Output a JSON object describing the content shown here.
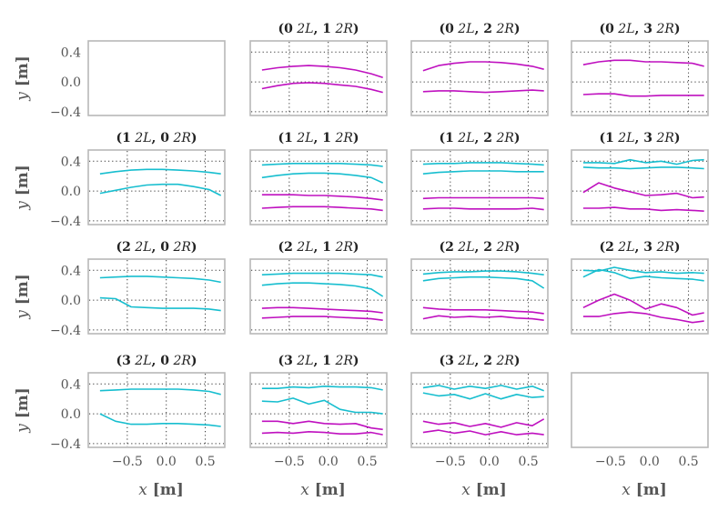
{
  "chart_data": {
    "type": "line",
    "rows": 4,
    "cols": 4,
    "xlim": [
      -1.0,
      0.75
    ],
    "ylim": [
      -0.45,
      0.55
    ],
    "x_ticks": [
      -0.5,
      0.0,
      0.5
    ],
    "x_tick_labels": [
      "−0.5",
      "0.0",
      "0.5"
    ],
    "y_ticks": [
      0.4,
      0.0,
      -0.4
    ],
    "y_tick_labels": [
      "0.4",
      "0.0",
      "−0.4"
    ],
    "ylabel_text": "y",
    "ylabel_unit": "[m]",
    "xlabel_text": "x",
    "xlabel_unit": "[m]",
    "colors": {
      "left": "#17becf",
      "right": "#bf10bf",
      "frame": "#b8b8b8",
      "tick": "#555555"
    },
    "x": [
      -0.85,
      -0.65,
      -0.45,
      -0.25,
      -0.05,
      0.15,
      0.35,
      0.55,
      0.7
    ],
    "panels": [
      {
        "row": 0,
        "col": 0,
        "title": null,
        "series": []
      },
      {
        "row": 0,
        "col": 1,
        "title": {
          "a": "0",
          "b": "1"
        },
        "series": [
          {
            "group": "right",
            "values": [
              0.16,
              0.19,
              0.21,
              0.22,
              0.21,
              0.19,
              0.16,
              0.11,
              0.06
            ]
          },
          {
            "group": "right",
            "values": [
              -0.09,
              -0.05,
              -0.02,
              -0.01,
              -0.02,
              -0.04,
              -0.06,
              -0.1,
              -0.14
            ]
          }
        ]
      },
      {
        "row": 0,
        "col": 2,
        "title": {
          "a": "0",
          "b": "2"
        },
        "series": [
          {
            "group": "right",
            "values": [
              0.15,
              0.22,
              0.25,
              0.27,
              0.27,
              0.26,
              0.24,
              0.21,
              0.17
            ]
          },
          {
            "group": "right",
            "values": [
              -0.13,
              -0.12,
              -0.12,
              -0.13,
              -0.14,
              -0.13,
              -0.12,
              -0.11,
              -0.12
            ]
          }
        ]
      },
      {
        "row": 0,
        "col": 3,
        "title": {
          "a": "0",
          "b": "3"
        },
        "series": [
          {
            "group": "right",
            "values": [
              0.23,
              0.27,
              0.29,
              0.29,
              0.27,
              0.27,
              0.26,
              0.25,
              0.21
            ]
          },
          {
            "group": "right",
            "values": [
              -0.17,
              -0.16,
              -0.16,
              -0.19,
              -0.19,
              -0.18,
              -0.18,
              -0.18,
              -0.18
            ]
          }
        ]
      },
      {
        "row": 1,
        "col": 0,
        "title": {
          "a": "1",
          "b": "0"
        },
        "series": [
          {
            "group": "left",
            "values": [
              0.23,
              0.26,
              0.28,
              0.29,
              0.29,
              0.28,
              0.27,
              0.25,
              0.23
            ]
          },
          {
            "group": "left",
            "values": [
              -0.03,
              0.01,
              0.05,
              0.08,
              0.09,
              0.09,
              0.06,
              0.02,
              -0.06
            ]
          }
        ]
      },
      {
        "row": 1,
        "col": 1,
        "title": {
          "a": "1",
          "b": "1"
        },
        "series": [
          {
            "group": "left",
            "values": [
              0.35,
              0.36,
              0.37,
              0.37,
              0.37,
              0.37,
              0.36,
              0.35,
              0.33
            ]
          },
          {
            "group": "left",
            "values": [
              0.18,
              0.21,
              0.23,
              0.24,
              0.24,
              0.23,
              0.21,
              0.18,
              0.11
            ]
          },
          {
            "group": "right",
            "values": [
              -0.05,
              -0.05,
              -0.05,
              -0.06,
              -0.06,
              -0.07,
              -0.08,
              -0.1,
              -0.12
            ]
          },
          {
            "group": "right",
            "values": [
              -0.23,
              -0.22,
              -0.21,
              -0.21,
              -0.21,
              -0.22,
              -0.23,
              -0.24,
              -0.26
            ]
          }
        ]
      },
      {
        "row": 1,
        "col": 2,
        "title": {
          "a": "1",
          "b": "2"
        },
        "series": [
          {
            "group": "left",
            "values": [
              0.36,
              0.37,
              0.37,
              0.38,
              0.38,
              0.38,
              0.37,
              0.36,
              0.35
            ]
          },
          {
            "group": "left",
            "values": [
              0.23,
              0.25,
              0.26,
              0.27,
              0.27,
              0.27,
              0.26,
              0.26,
              0.26
            ]
          },
          {
            "group": "right",
            "values": [
              -0.1,
              -0.09,
              -0.09,
              -0.09,
              -0.09,
              -0.09,
              -0.09,
              -0.09,
              -0.1
            ]
          },
          {
            "group": "right",
            "values": [
              -0.24,
              -0.23,
              -0.23,
              -0.24,
              -0.24,
              -0.24,
              -0.24,
              -0.23,
              -0.25
            ]
          }
        ]
      },
      {
        "row": 1,
        "col": 3,
        "title": {
          "a": "1",
          "b": "3"
        },
        "series": [
          {
            "group": "left",
            "values": [
              0.38,
              0.38,
              0.37,
              0.42,
              0.38,
              0.4,
              0.36,
              0.41,
              0.42
            ]
          },
          {
            "group": "left",
            "values": [
              0.32,
              0.31,
              0.31,
              0.3,
              0.31,
              0.32,
              0.32,
              0.31,
              0.3
            ]
          },
          {
            "group": "right",
            "values": [
              -0.02,
              0.11,
              0.04,
              -0.01,
              -0.06,
              -0.05,
              -0.03,
              -0.09,
              -0.08
            ]
          },
          {
            "group": "right",
            "values": [
              -0.23,
              -0.23,
              -0.22,
              -0.24,
              -0.24,
              -0.26,
              -0.25,
              -0.26,
              -0.27
            ]
          }
        ]
      },
      {
        "row": 2,
        "col": 0,
        "title": {
          "a": "2",
          "b": "0"
        },
        "series": [
          {
            "group": "left",
            "values": [
              0.3,
              0.31,
              0.32,
              0.32,
              0.31,
              0.3,
              0.29,
              0.27,
              0.24
            ]
          },
          {
            "group": "left",
            "values": [
              0.03,
              0.02,
              -0.09,
              -0.1,
              -0.11,
              -0.11,
              -0.11,
              -0.12,
              -0.14
            ]
          }
        ]
      },
      {
        "row": 2,
        "col": 1,
        "title": {
          "a": "2",
          "b": "1"
        },
        "series": [
          {
            "group": "left",
            "values": [
              0.34,
              0.35,
              0.36,
              0.36,
              0.36,
              0.36,
              0.35,
              0.34,
              0.31
            ]
          },
          {
            "group": "left",
            "values": [
              0.2,
              0.22,
              0.23,
              0.23,
              0.22,
              0.21,
              0.19,
              0.15,
              0.05
            ]
          },
          {
            "group": "right",
            "values": [
              -0.11,
              -0.1,
              -0.1,
              -0.11,
              -0.12,
              -0.13,
              -0.14,
              -0.15,
              -0.17
            ]
          },
          {
            "group": "right",
            "values": [
              -0.24,
              -0.23,
              -0.22,
              -0.22,
              -0.22,
              -0.23,
              -0.24,
              -0.25,
              -0.27
            ]
          }
        ]
      },
      {
        "row": 2,
        "col": 2,
        "title": {
          "a": "2",
          "b": "2"
        },
        "series": [
          {
            "group": "left",
            "values": [
              0.35,
              0.37,
              0.38,
              0.38,
              0.39,
              0.39,
              0.38,
              0.36,
              0.34
            ]
          },
          {
            "group": "left",
            "values": [
              0.26,
              0.29,
              0.3,
              0.31,
              0.31,
              0.3,
              0.29,
              0.26,
              0.16
            ]
          },
          {
            "group": "right",
            "values": [
              -0.1,
              -0.12,
              -0.13,
              -0.13,
              -0.13,
              -0.14,
              -0.15,
              -0.16,
              -0.18
            ]
          },
          {
            "group": "right",
            "values": [
              -0.25,
              -0.21,
              -0.23,
              -0.22,
              -0.23,
              -0.22,
              -0.24,
              -0.25,
              -0.27
            ]
          }
        ]
      },
      {
        "row": 2,
        "col": 3,
        "title": {
          "a": "2",
          "b": "3"
        },
        "series": [
          {
            "group": "left",
            "values": [
              0.4,
              0.39,
              0.44,
              0.4,
              0.37,
              0.38,
              0.36,
              0.37,
              0.36
            ]
          },
          {
            "group": "left",
            "values": [
              0.31,
              0.41,
              0.37,
              0.29,
              0.32,
              0.3,
              0.29,
              0.28,
              0.26
            ]
          },
          {
            "group": "right",
            "values": [
              -0.1,
              0.0,
              0.08,
              0.0,
              -0.12,
              -0.05,
              -0.1,
              -0.2,
              -0.17
            ]
          },
          {
            "group": "right",
            "values": [
              -0.22,
              -0.22,
              -0.18,
              -0.16,
              -0.18,
              -0.23,
              -0.26,
              -0.3,
              -0.28
            ]
          }
        ]
      },
      {
        "row": 3,
        "col": 0,
        "title": {
          "a": "3",
          "b": "0"
        },
        "series": [
          {
            "group": "left",
            "values": [
              0.31,
              0.32,
              0.33,
              0.33,
              0.33,
              0.33,
              0.32,
              0.3,
              0.26
            ]
          },
          {
            "group": "left",
            "values": [
              0.0,
              -0.1,
              -0.14,
              -0.14,
              -0.13,
              -0.13,
              -0.14,
              -0.15,
              -0.17
            ]
          }
        ]
      },
      {
        "row": 3,
        "col": 1,
        "title": {
          "a": "3",
          "b": "1"
        },
        "series": [
          {
            "group": "left",
            "values": [
              0.34,
              0.34,
              0.36,
              0.35,
              0.37,
              0.36,
              0.36,
              0.35,
              0.32
            ]
          },
          {
            "group": "left",
            "values": [
              0.17,
              0.16,
              0.21,
              0.13,
              0.18,
              0.06,
              0.02,
              0.02,
              0.0
            ]
          },
          {
            "group": "right",
            "values": [
              -0.1,
              -0.1,
              -0.13,
              -0.1,
              -0.13,
              -0.14,
              -0.13,
              -0.19,
              -0.21
            ]
          },
          {
            "group": "right",
            "values": [
              -0.26,
              -0.25,
              -0.26,
              -0.24,
              -0.25,
              -0.27,
              -0.27,
              -0.25,
              -0.28
            ]
          }
        ]
      },
      {
        "row": 3,
        "col": 2,
        "title": {
          "a": "3",
          "b": "2"
        },
        "series": [
          {
            "group": "left",
            "values": [
              0.35,
              0.38,
              0.33,
              0.37,
              0.34,
              0.38,
              0.33,
              0.37,
              0.31
            ]
          },
          {
            "group": "left",
            "values": [
              0.28,
              0.24,
              0.26,
              0.2,
              0.27,
              0.2,
              0.26,
              0.22,
              0.23
            ]
          },
          {
            "group": "right",
            "values": [
              -0.1,
              -0.14,
              -0.12,
              -0.17,
              -0.13,
              -0.18,
              -0.12,
              -0.16,
              -0.07
            ]
          },
          {
            "group": "right",
            "values": [
              -0.25,
              -0.22,
              -0.26,
              -0.23,
              -0.28,
              -0.24,
              -0.28,
              -0.26,
              -0.28
            ]
          }
        ]
      },
      {
        "row": 3,
        "col": 3,
        "title": null,
        "series": []
      }
    ]
  }
}
